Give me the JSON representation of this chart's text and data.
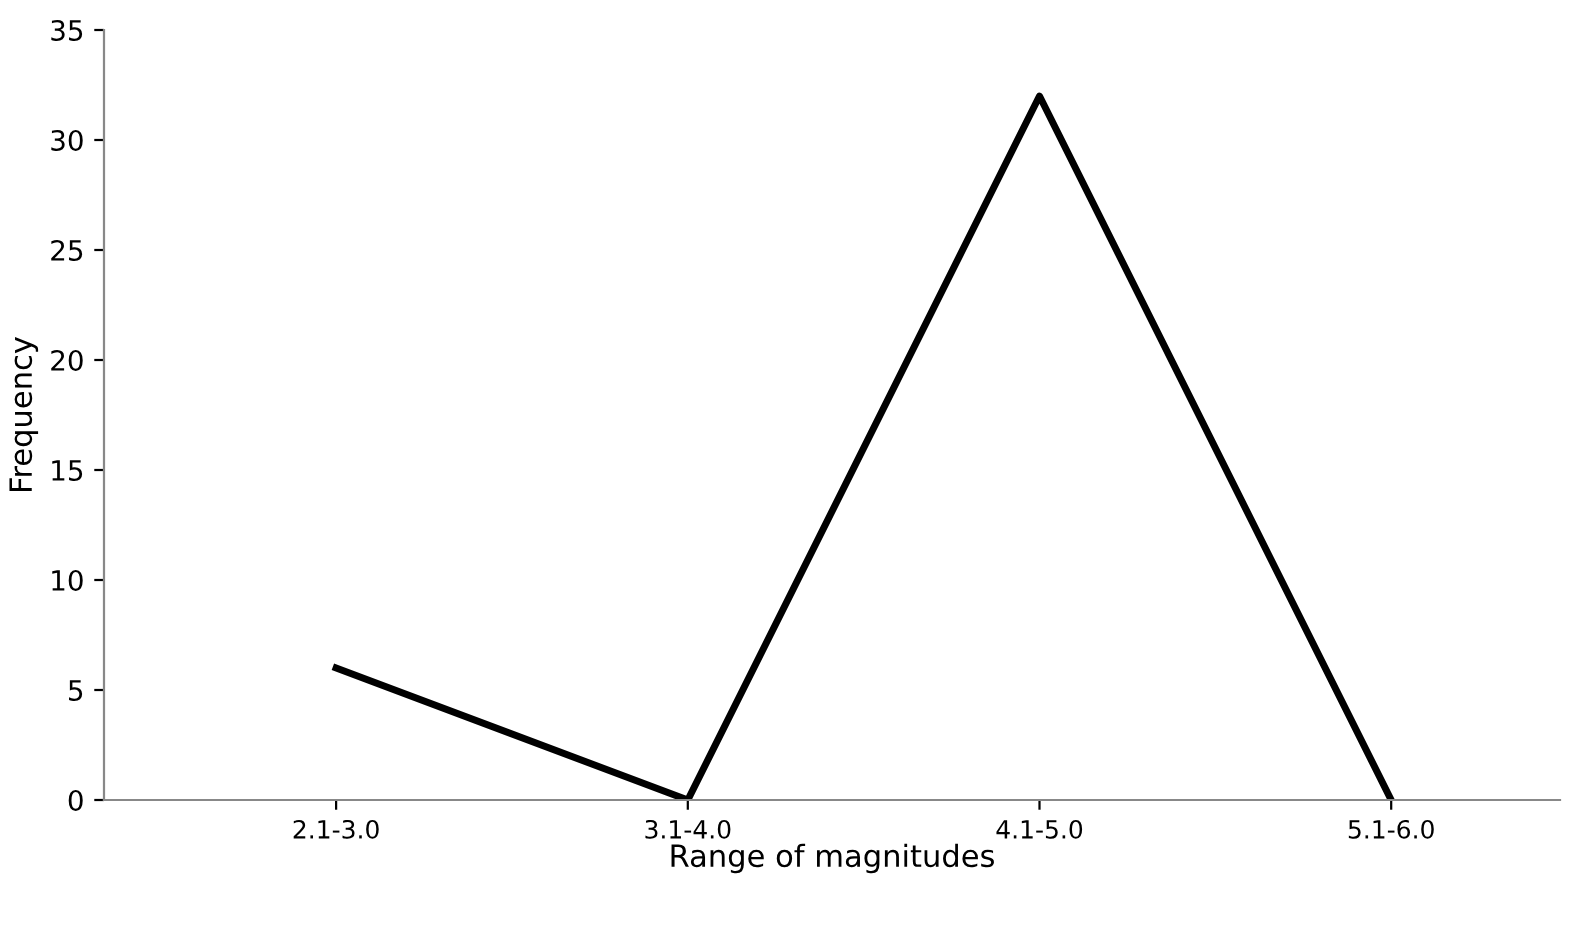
{
  "chart_data": {
    "type": "line",
    "xlabel": "Range of magnitudes",
    "ylabel": "Frequency",
    "categories": [
      "2.1-3.0",
      "3.1-4.0",
      "4.1-5.0",
      "5.1-6.0"
    ],
    "series": [
      {
        "color": "#000000",
        "values": [
          6,
          0,
          32,
          0
        ]
      }
    ],
    "ylim": [
      0,
      35
    ],
    "yticks": [
      0,
      5,
      10,
      15,
      20,
      25,
      30,
      35
    ],
    "grid": false,
    "legend": false,
    "marker": "none",
    "line_style": "solid"
  }
}
